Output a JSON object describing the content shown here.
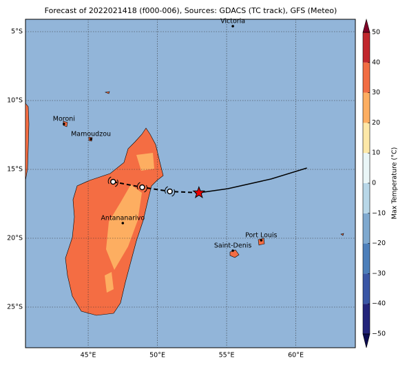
{
  "chart_data": {
    "type": "map",
    "title": "Forecast of 2022021418 (f000-006), Sources: GDACS (TC track), GFS (Meteo)",
    "xlim": [
      40.47,
      64.3
    ],
    "ylim": [
      -27.95,
      -4.1
    ],
    "xticks": [
      {
        "value": 45,
        "label": "45°E"
      },
      {
        "value": 50,
        "label": "50°E"
      },
      {
        "value": 55,
        "label": "55°E"
      },
      {
        "value": 60,
        "label": "60°E"
      }
    ],
    "yticks": [
      {
        "value": -5,
        "label": "5°S"
      },
      {
        "value": -10,
        "label": "10°S"
      },
      {
        "value": -15,
        "label": "15°S"
      },
      {
        "value": -20,
        "label": "20°S"
      },
      {
        "value": -25,
        "label": "25°S"
      }
    ],
    "grid": true,
    "cities": [
      {
        "name": "Victoria",
        "lon": 55.45,
        "lat": -4.6
      },
      {
        "name": "Moroni",
        "lon": 43.25,
        "lat": -11.7
      },
      {
        "name": "Mamoudzou",
        "lon": 45.2,
        "lat": -12.8
      },
      {
        "name": "Antananarivo",
        "lon": 47.5,
        "lat": -18.9
      },
      {
        "name": "Port Louis",
        "lon": 57.5,
        "lat": -20.15
      },
      {
        "name": "Saint-Denis",
        "lon": 55.45,
        "lat": -20.9
      }
    ],
    "forecast_track": {
      "lon": [
        46.8,
        48.9,
        50.9
      ],
      "lat": [
        -15.9,
        -16.3,
        -16.6
      ]
    },
    "past_track": {
      "lon": [
        53.0,
        55.1,
        58.2,
        60.8
      ],
      "lat": [
        -16.7,
        -16.4,
        -15.7,
        -14.9
      ]
    },
    "current_position": {
      "lon": 53.0,
      "lat": -16.7
    },
    "colorbar": {
      "label": "Max Temperature (°C)",
      "ticks": [
        {
          "value": -50,
          "label": "−50"
        },
        {
          "value": -40,
          "label": "−40"
        },
        {
          "value": -30,
          "label": "−30"
        },
        {
          "value": -20,
          "label": "−20"
        },
        {
          "value": -10,
          "label": "−10"
        },
        0,
        10,
        20,
        30,
        40,
        50
      ],
      "colors": [
        "#23247a",
        "#3a56a5",
        "#4d7fba",
        "#7fa9cf",
        "#b8d7e8",
        "#eaf6f7",
        "#fde8a8",
        "#fdae61",
        "#f16d43",
        "#c1272d"
      ],
      "under_color": "#0c0c50",
      "over_color": "#7f0026"
    }
  }
}
